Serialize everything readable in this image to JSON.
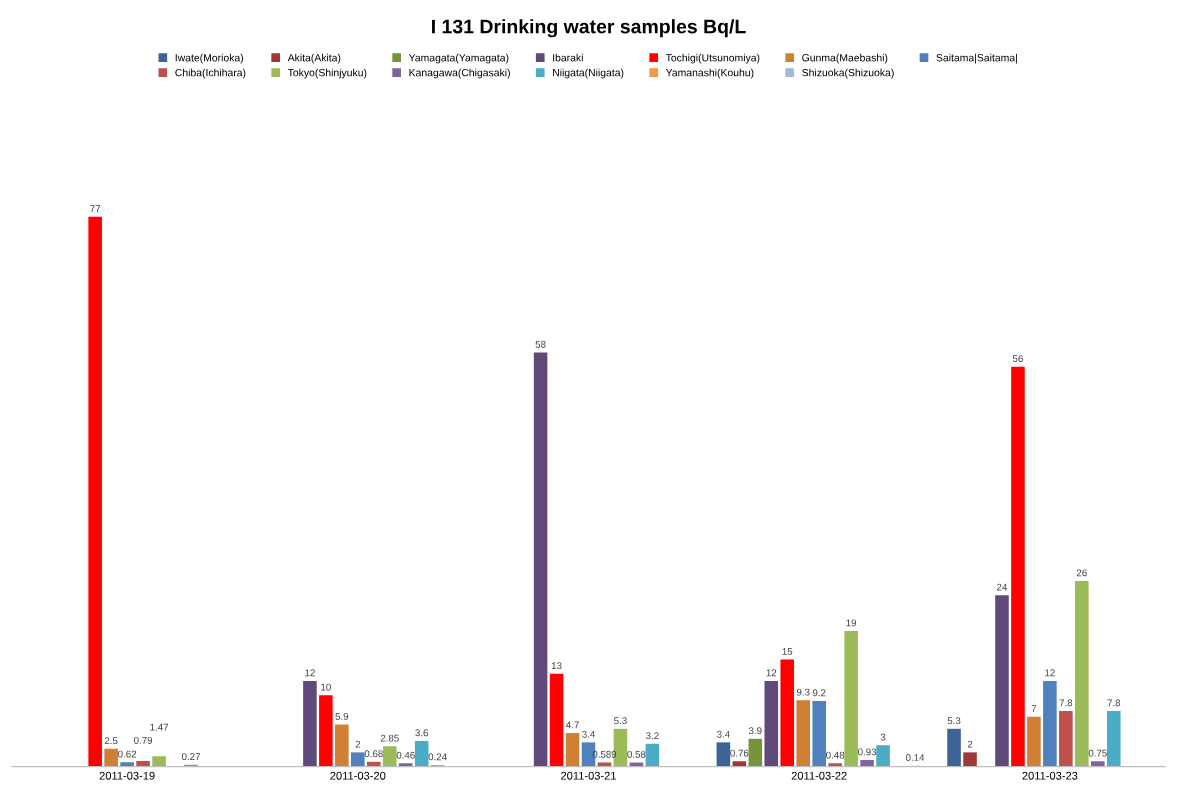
{
  "chart_data": {
    "type": "bar",
    "title": "I 131 Drinking water samples Bq/L",
    "categories": [
      "2011-03-19",
      "2011-03-20",
      "2011-03-21",
      "2011-03-22",
      "2011-03-23"
    ],
    "series": [
      {
        "name": "Iwate(Morioka)",
        "color": "#3c6496",
        "values": [
          null,
          null,
          null,
          3.4,
          5.3
        ]
      },
      {
        "name": "Akita(Akita)",
        "color": "#a0373a",
        "values": [
          null,
          null,
          null,
          0.76,
          2
        ]
      },
      {
        "name": "Yamagata(Yamagata)",
        "color": "#77933c",
        "values": [
          null,
          null,
          null,
          3.9,
          null
        ]
      },
      {
        "name": "Ibaraki",
        "color": "#604a7b",
        "values": [
          null,
          12,
          58,
          12,
          24
        ]
      },
      {
        "name": "Tochigi(Utsunomiya)",
        "color": "#ff0000",
        "values": [
          77,
          10,
          13,
          15,
          56
        ]
      },
      {
        "name": "Gunma(Maebashi)",
        "color": "#d17f35",
        "values": [
          2.5,
          5.9,
          4.7,
          9.3,
          7
        ]
      },
      {
        "name": "Saitama|Saitama|",
        "color": "#4f81bd",
        "values": [
          0.62,
          2,
          3.4,
          9.2,
          12
        ]
      },
      {
        "name": "Chiba(Ichihara)",
        "color": "#c0504d",
        "values": [
          0.79,
          0.68,
          0.589,
          0.48,
          7.8
        ]
      },
      {
        "name": "Tokyo(Shinjyuku)",
        "color": "#9bbb59",
        "values": [
          1.47,
          2.85,
          5.3,
          19,
          26
        ]
      },
      {
        "name": "Kanagawa(Chigasaki)",
        "color": "#8064a2",
        "values": [
          null,
          0.46,
          0.58,
          0.93,
          0.75
        ]
      },
      {
        "name": "Niigata(Niigata)",
        "color": "#4bacc6",
        "values": [
          0.27,
          3.6,
          3.2,
          3,
          7.8
        ]
      },
      {
        "name": "Yamanashi(Kouhu)",
        "color": "#f79646",
        "values": [
          null,
          0.24,
          null,
          null,
          null
        ]
      },
      {
        "name": "Shizuoka(Shizuoka)",
        "color": "#a5b7dc",
        "values": [
          null,
          null,
          null,
          0.14,
          null
        ]
      }
    ],
    "data_labels": true,
    "grid": false,
    "legend": "top"
  }
}
